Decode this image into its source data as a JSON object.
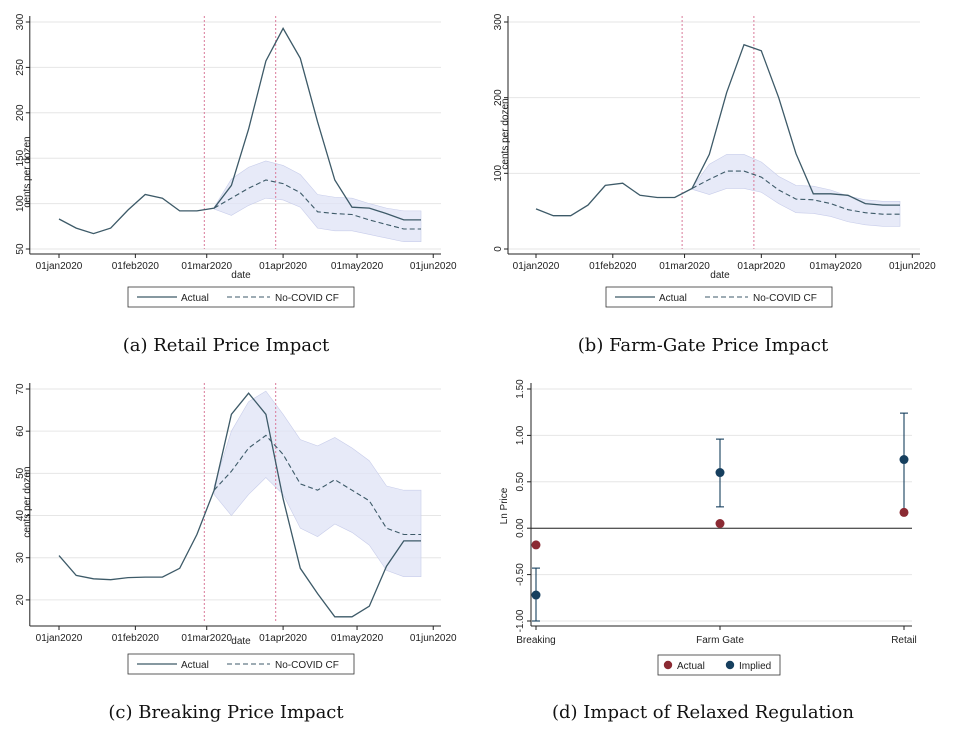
{
  "chart_data": [
    {
      "id": "a",
      "type": "line",
      "caption": "(a) Retail Price Impact",
      "xlabel": "date",
      "ylabel": "cents per dozen",
      "x": [
        0,
        1,
        2,
        3,
        4,
        5,
        6,
        7,
        8,
        9,
        10,
        11,
        12,
        13,
        14,
        15,
        16,
        17,
        18,
        19,
        20,
        21
      ],
      "xlim": [
        0,
        21
      ],
      "xticks": [
        0,
        4.43,
        8.57,
        13,
        17.29,
        21.71
      ],
      "xticklabels": [
        "01jan2020",
        "01feb2020",
        "01mar2020",
        "01apr2020",
        "01may2020",
        "01jun2020"
      ],
      "ylim": [
        50,
        300
      ],
      "yticks": [
        50,
        100,
        150,
        200,
        250,
        300
      ],
      "vlines": [
        8.43,
        12.57
      ],
      "series": [
        {
          "name": "Actual",
          "values": [
            83,
            73,
            67,
            73,
            93,
            110,
            106,
            92,
            92,
            95,
            120,
            182,
            257,
            293,
            260,
            190,
            126,
            96,
            95,
            89,
            82,
            82
          ]
        },
        {
          "name": "No-COVID CF",
          "values": [
            null,
            null,
            null,
            null,
            null,
            null,
            null,
            null,
            null,
            95,
            106,
            117,
            126,
            122,
            112,
            91,
            89,
            88,
            82,
            77,
            72,
            72
          ]
        },
        {
          "name": "CI lower",
          "values": [
            null,
            null,
            null,
            null,
            null,
            null,
            null,
            null,
            null,
            94,
            87,
            98,
            106,
            104,
            96,
            73,
            70,
            70,
            66,
            62,
            58,
            58
          ]
        },
        {
          "name": "CI upper",
          "values": [
            null,
            null,
            null,
            null,
            null,
            null,
            null,
            null,
            null,
            96,
            127,
            140,
            147,
            142,
            132,
            110,
            107,
            106,
            100,
            95,
            92,
            92
          ]
        }
      ],
      "legend": [
        "Actual",
        "No-COVID CF"
      ]
    },
    {
      "id": "b",
      "type": "line",
      "caption": "(b) Farm-Gate Price Impact",
      "xlabel": "date",
      "ylabel": "cents per dozen",
      "x": [
        0,
        1,
        2,
        3,
        4,
        5,
        6,
        7,
        8,
        9,
        10,
        11,
        12,
        13,
        14,
        15,
        16,
        17,
        18,
        19,
        20,
        21
      ],
      "xlim": [
        0,
        21
      ],
      "xticks": [
        0,
        4.43,
        8.57,
        13,
        17.29,
        21.71
      ],
      "xticklabels": [
        "01jan2020",
        "01feb2020",
        "01mar2020",
        "01apr2020",
        "01may2020",
        "01jun2020"
      ],
      "ylim": [
        0,
        300
      ],
      "yticks": [
        0,
        100,
        200,
        300
      ],
      "vlines": [
        8.43,
        12.57
      ],
      "series": [
        {
          "name": "Actual",
          "values": [
            53,
            44,
            44,
            58,
            84,
            87,
            71,
            68,
            68,
            80,
            125,
            207,
            270,
            262,
            200,
            126,
            73,
            73,
            71,
            60,
            58,
            58
          ]
        },
        {
          "name": "No-COVID CF",
          "values": [
            null,
            null,
            null,
            null,
            null,
            null,
            null,
            null,
            null,
            80,
            92,
            103,
            103,
            95,
            78,
            66,
            65,
            60,
            52,
            48,
            46,
            46
          ]
        },
        {
          "name": "CI lower",
          "values": [
            null,
            null,
            null,
            null,
            null,
            null,
            null,
            null,
            null,
            79,
            72,
            80,
            80,
            75,
            60,
            48,
            47,
            43,
            36,
            32,
            30,
            30
          ]
        },
        {
          "name": "CI upper",
          "values": [
            null,
            null,
            null,
            null,
            null,
            null,
            null,
            null,
            null,
            81,
            112,
            125,
            125,
            115,
            96,
            84,
            83,
            78,
            70,
            65,
            63,
            63
          ]
        }
      ],
      "legend": [
        "Actual",
        "No-COVID CF"
      ]
    },
    {
      "id": "c",
      "type": "line",
      "caption": "(c) Breaking Price Impact",
      "xlabel": "date",
      "ylabel": "cents per dozen",
      "x": [
        0,
        1,
        2,
        3,
        4,
        5,
        6,
        7,
        8,
        9,
        10,
        11,
        12,
        13,
        14,
        15,
        16,
        17,
        18,
        19,
        20,
        21
      ],
      "xlim": [
        0,
        21
      ],
      "xticks": [
        0,
        4.43,
        8.57,
        13,
        17.29,
        21.71
      ],
      "xticklabels": [
        "01jan2020",
        "01feb2020",
        "01mar2020",
        "01apr2020",
        "01may2020",
        "01jun2020"
      ],
      "ylim": [
        15,
        70
      ],
      "yticks": [
        20,
        30,
        40,
        50,
        60,
        70
      ],
      "vlines": [
        8.43,
        12.57
      ],
      "series": [
        {
          "name": "Actual",
          "values": [
            30.5,
            25.8,
            25,
            24.8,
            25.3,
            25.4,
            25.4,
            27.5,
            35.5,
            46,
            64,
            69,
            64,
            44,
            27.5,
            21.5,
            16,
            16,
            18.5,
            28,
            34,
            34
          ]
        },
        {
          "name": "No-COVID CF",
          "values": [
            null,
            null,
            null,
            null,
            null,
            null,
            null,
            null,
            null,
            46,
            50.5,
            56,
            59,
            54.5,
            47.5,
            46,
            48.5,
            46,
            43.5,
            37,
            35.5,
            35.5
          ]
        },
        {
          "name": "CI lower",
          "values": [
            null,
            null,
            null,
            null,
            null,
            null,
            null,
            null,
            null,
            45,
            40,
            45,
            49,
            45,
            37,
            35,
            38,
            36,
            33,
            27,
            25.5,
            25.5
          ]
        },
        {
          "name": "CI upper",
          "values": [
            null,
            null,
            null,
            null,
            null,
            null,
            null,
            null,
            null,
            47,
            60,
            67,
            69.5,
            64,
            58,
            56.5,
            58.5,
            56,
            53,
            47,
            46,
            46
          ]
        }
      ],
      "legend": [
        "Actual",
        "No-COVID CF"
      ]
    },
    {
      "id": "d",
      "type": "scatter",
      "caption": "(d) Impact of Relaxed Regulation",
      "xlabel": "",
      "ylabel": "Ln Price",
      "categories": [
        "Breaking",
        "Farm Gate",
        "Retail"
      ],
      "ylim": [
        -1.0,
        1.5
      ],
      "yticks": [
        -1.0,
        -0.5,
        0.0,
        0.5,
        1.0,
        1.5
      ],
      "yticklabels": [
        "-1.00",
        "-0.50",
        "0.00",
        "0.50",
        "1.00",
        "1.50"
      ],
      "series": [
        {
          "name": "Actual",
          "color": "#8b2a33",
          "values": [
            -0.18,
            0.05,
            0.17
          ]
        },
        {
          "name": "Implied",
          "color": "#163f5e",
          "values": [
            -0.72,
            0.6,
            0.74
          ],
          "ci_low": [
            -1.0,
            0.23,
            0.17
          ],
          "ci_high": [
            -0.43,
            0.96,
            1.24
          ]
        }
      ],
      "zero_line": true,
      "legend": [
        "Actual",
        "Implied"
      ]
    }
  ]
}
